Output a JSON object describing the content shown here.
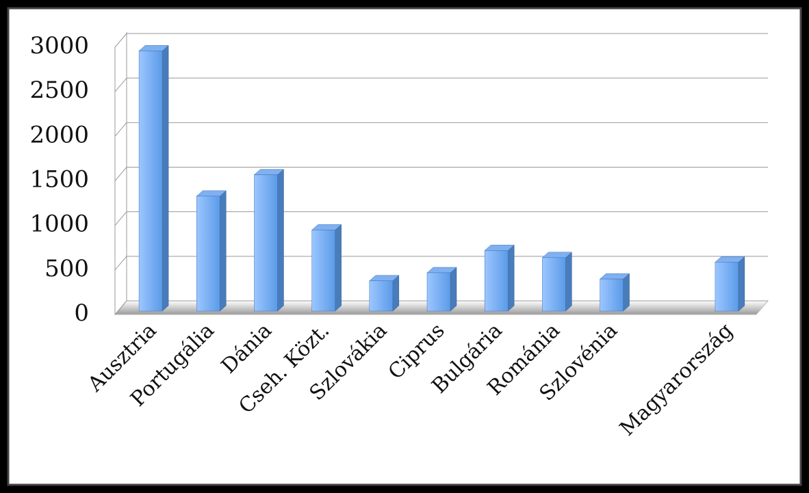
{
  "chart_data": {
    "type": "bar",
    "categories": [
      "Ausztria",
      "Portugália",
      "Dánia",
      "Cseh. Közt.",
      "Szlovákia",
      "Ciprus",
      "Bulgária",
      "Románia",
      "Szlovénia",
      null,
      "Magyarország"
    ],
    "values": [
      2920,
      1290,
      1530,
      910,
      340,
      430,
      680,
      600,
      360,
      null,
      550
    ],
    "color": "#5b9be8",
    "ylim": [
      0,
      3000
    ],
    "yticks": [
      0,
      500,
      1000,
      1500,
      2000,
      2500,
      3000
    ],
    "grid": true
  }
}
